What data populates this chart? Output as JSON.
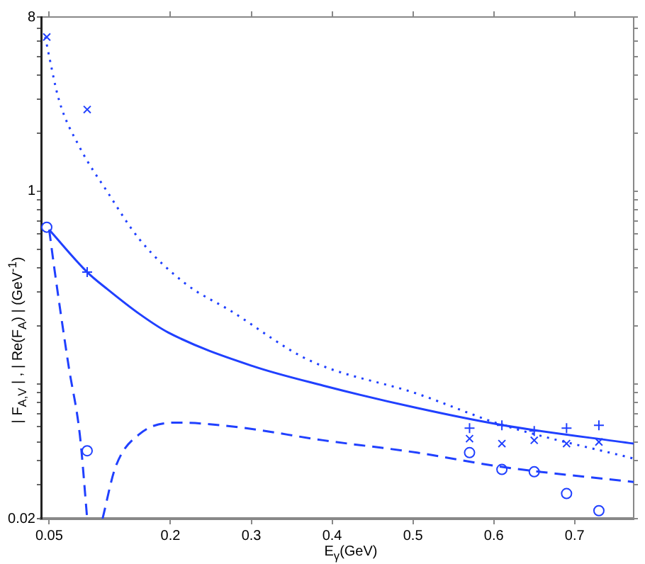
{
  "chart_data": {
    "type": "line",
    "xlabel": "E$_{γ}$(GeV)",
    "ylabel": "| F$_{A,V}$ | , | Re(F$_{A}$) | (GeV$^{-1}$)",
    "xlim": [
      0.04,
      0.773
    ],
    "xticks": [
      0.05,
      0.2,
      0.3,
      0.4,
      0.5,
      0.6,
      0.7
    ],
    "ylim": [
      0.02,
      8
    ],
    "yticks": [
      0.02,
      {
        "value": 0.03,
        "label": null
      },
      {
        "value": 0.04,
        "label": null
      },
      {
        "value": 0.05,
        "label": null
      },
      {
        "value": 0.06,
        "label": null
      },
      {
        "value": 0.07,
        "label": null
      },
      {
        "value": 0.08,
        "label": null
      },
      {
        "value": 0.09,
        "label": null
      },
      {
        "value": 0.1,
        "label": null
      },
      {
        "value": 0.2,
        "label": null
      },
      {
        "value": 0.3,
        "label": null
      },
      {
        "value": 0.4,
        "label": null
      },
      {
        "value": 0.5,
        "label": null
      },
      {
        "value": 0.6,
        "label": null
      },
      {
        "value": 0.7,
        "label": null
      },
      {
        "value": 0.8,
        "label": null
      },
      {
        "value": 0.9,
        "label": null
      },
      1,
      {
        "value": 2,
        "label": null
      },
      {
        "value": 3,
        "label": null
      },
      {
        "value": 4,
        "label": null
      },
      {
        "value": 5,
        "label": null
      },
      {
        "value": 6,
        "label": null
      },
      {
        "value": 7,
        "label": null
      },
      8
    ],
    "log": true,
    "grid": false,
    "legend": false,
    "series": [
      {
        "type": "line",
        "line_style": "dotted",
        "color": "#2040ff",
        "x": [
          0.045,
          0.062,
          0.087,
          0.122,
          0.162,
          0.219,
          0.274,
          0.371,
          0.505,
          0.612,
          0.773
        ],
        "values": [
          6.3,
          2.98,
          1.71,
          0.99,
          0.56,
          0.33,
          0.24,
          0.133,
          0.089,
          0.061,
          0.041
        ]
      },
      {
        "type": "line",
        "line_style": "solid",
        "color": "#2040ff",
        "x": [
          0.05,
          0.097,
          0.122,
          0.162,
          0.197,
          0.301,
          0.389,
          0.505,
          0.612,
          0.773
        ],
        "values": [
          0.63,
          0.38,
          0.31,
          0.23,
          0.185,
          0.124,
          0.098,
          0.075,
          0.061,
          0.049
        ]
      },
      {
        "type": "line",
        "line_style": "dashed",
        "color": "#2040ff",
        "x": [
          0.05,
          0.057,
          0.074,
          0.088,
          0.097,
          0.105,
          0.116,
          0.132,
          0.162,
          0.209,
          0.279,
          0.389,
          0.505,
          0.612,
          0.773
        ],
        "values": [
          0.63,
          0.38,
          0.124,
          0.054,
          0.02,
          null,
          0.02,
          0.037,
          0.055,
          0.063,
          0.06,
          0.051,
          0.044,
          0.037,
          0.031
        ]
      },
      {
        "type": "scatter",
        "marker": "cross",
        "color": "#2040ff",
        "x": [
          0.047,
          0.097,
          0.57,
          0.61,
          0.65,
          0.69,
          0.73
        ],
        "values": [
          6.3,
          2.65,
          0.052,
          0.049,
          0.051,
          0.049,
          0.05
        ]
      },
      {
        "type": "scatter",
        "marker": "plus",
        "color": "#2040ff",
        "x": [
          0.097,
          0.57,
          0.61,
          0.65,
          0.69,
          0.73
        ],
        "values": [
          0.38,
          0.059,
          0.061,
          0.057,
          0.059,
          0.061
        ]
      },
      {
        "type": "scatter",
        "marker": "circle",
        "color": "#2040ff",
        "x": [
          0.047,
          0.097,
          0.57,
          0.61,
          0.65,
          0.69,
          0.73
        ],
        "values": [
          0.65,
          0.045,
          0.044,
          0.036,
          0.035,
          0.027,
          0.022
        ]
      }
    ]
  }
}
